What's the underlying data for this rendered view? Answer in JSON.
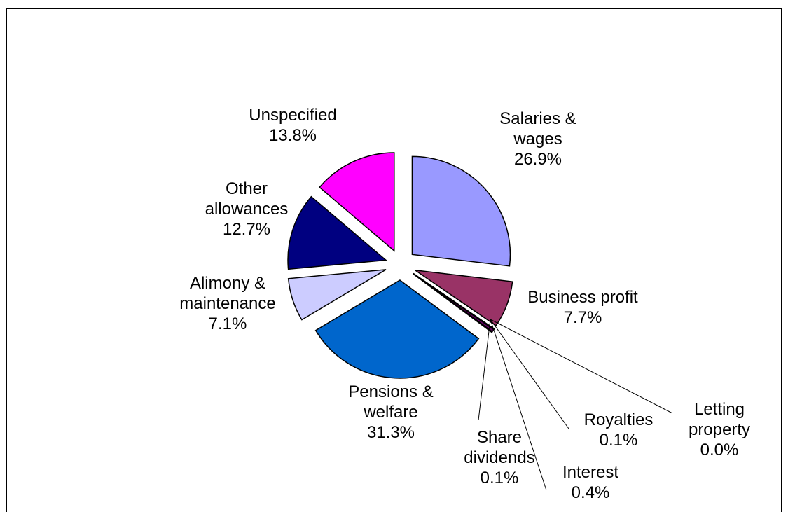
{
  "chart_data": {
    "type": "pie",
    "categories": [
      "Salaries & wages",
      "Business profit",
      "Letting property",
      "Royalties",
      "Interest",
      "Share dividends",
      "Pensions & welfare",
      "Alimony & maintenance",
      "Other allowances",
      "Unspecified"
    ],
    "values": [
      26.9,
      7.7,
      0.0,
      0.1,
      0.4,
      0.1,
      31.3,
      7.1,
      12.7,
      13.8
    ],
    "value_labels": [
      "26.9%",
      "7.7%",
      "0.0%",
      "0.1%",
      "0.4%",
      "0.1%",
      "31.3%",
      "7.1%",
      "12.7%",
      "13.8%"
    ],
    "colors": [
      "#9999ff",
      "#993366",
      "#ffffcc",
      "#ccffff",
      "#660066",
      "#ff8080",
      "#0066cc",
      "#ccccff",
      "#000080",
      "#ff00ff"
    ]
  }
}
